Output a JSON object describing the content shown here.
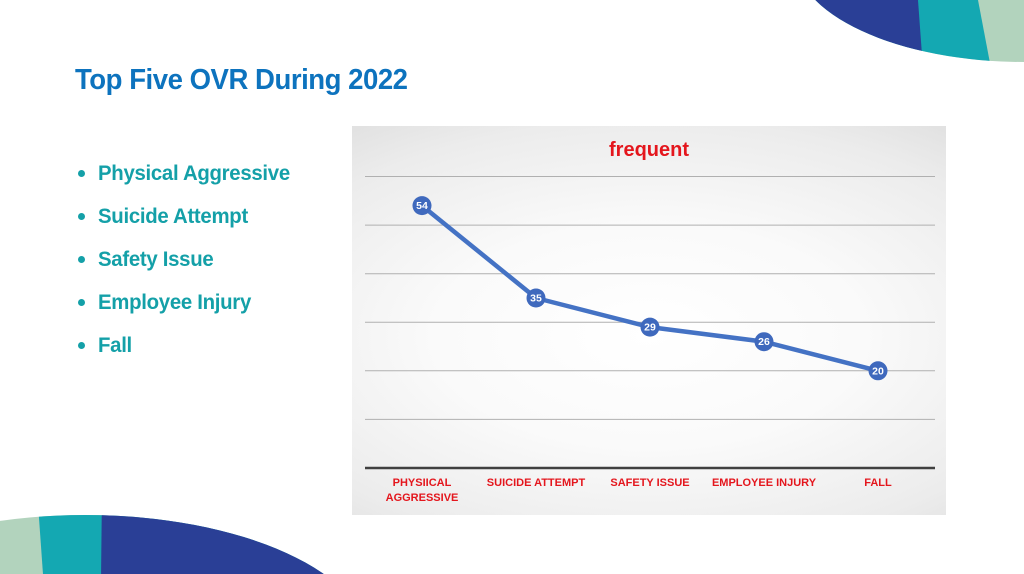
{
  "slide": {
    "title": "Top Five OVR During 2022",
    "bullets": [
      {
        "label": "Physical Aggressive"
      },
      {
        "label": "Suicide Attempt"
      },
      {
        "label": "Safety Issue"
      },
      {
        "label": "Employee Injury"
      },
      {
        "label": "Fall"
      }
    ]
  },
  "chart_data": {
    "type": "line",
    "title": "frequent",
    "categories": [
      "PHYSIICAL AGGRESSIVE",
      "SUICIDE ATTEMPT",
      "SAFETY ISSUE",
      "EMPLOYEE INJURY",
      "FALL"
    ],
    "values": [
      54,
      35,
      29,
      26,
      20
    ],
    "data_labels": [
      54,
      35,
      29,
      26,
      20
    ],
    "xlabel": "",
    "ylabel": "",
    "ylim": [
      0,
      60
    ],
    "gridline_step": 10,
    "grid": "horizontal",
    "y_tick_labels_visible": false,
    "legend": "none",
    "marker": "circle-with-value"
  },
  "theme": {
    "title_blue": "#0d73be",
    "bullet_teal": "#14a0a8",
    "chart_red": "#e4161d",
    "line_blue": "#4472c4",
    "marker_fill": "#3f69bd",
    "marker_text": "#ffffff",
    "gridline": "#b0b0b0",
    "axis": "#404040",
    "decor_dark_blue": "#2a3f96",
    "decor_teal": "#14a8b2",
    "decor_pale_green": "#b2d3bd"
  }
}
